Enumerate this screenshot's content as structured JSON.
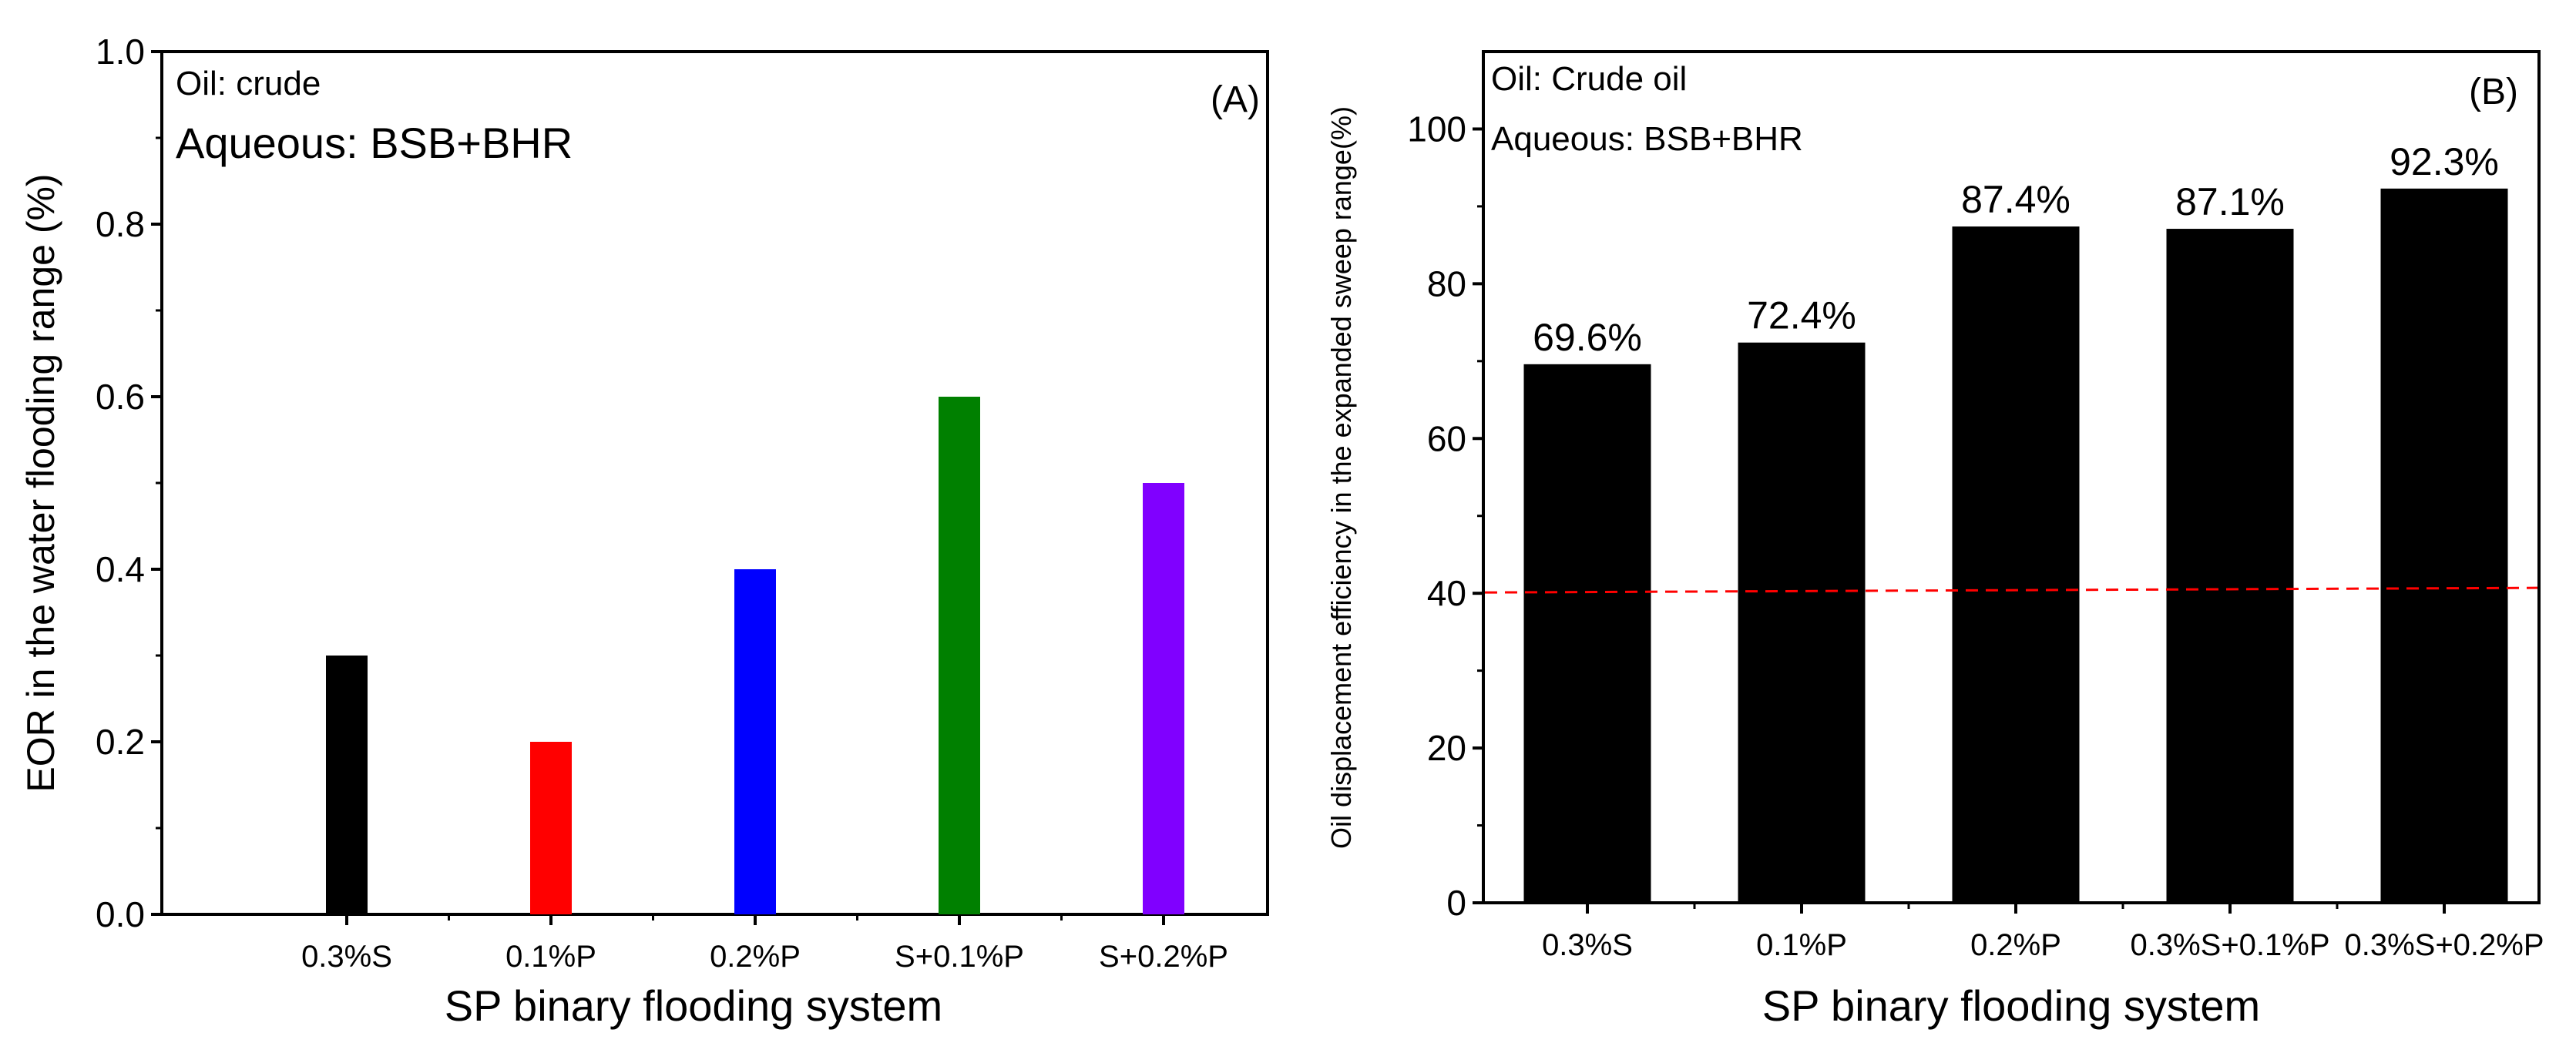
{
  "chart_data": [
    {
      "type": "bar",
      "panel_label": "(A)",
      "annotations": [
        "Oil: crude",
        "Aqueous: BSB+BHR"
      ],
      "categories": [
        "0.3%S",
        "0.1%P",
        "0.2%P",
        "S+0.1%P",
        "S+0.2%P"
      ],
      "values": [
        0.3,
        0.2,
        0.4,
        0.6,
        0.5
      ],
      "colors": [
        "#000000",
        "#ff0000",
        "#0000ff",
        "#008000",
        "#8000ff"
      ],
      "xlabel": "SP binary flooding system",
      "ylabel": "EOR in the water flooding range (%)",
      "ylim": [
        0,
        1.0
      ],
      "yticks": [
        "0.0",
        "0.2",
        "0.4",
        "0.6",
        "0.8",
        "1.0"
      ],
      "grid": false
    },
    {
      "type": "bar",
      "panel_label": "(B)",
      "annotations": [
        "Oil: Crude oil",
        "Aqueous: BSB+BHR"
      ],
      "categories": [
        "0.3%S",
        "0.1%P",
        "0.2%P",
        "0.3%S+0.1%P",
        "0.3%S+0.2%P"
      ],
      "values": [
        69.6,
        72.4,
        87.4,
        87.1,
        92.3
      ],
      "data_labels": [
        "69.6%",
        "72.4%",
        "87.4%",
        "87.1%",
        "92.3%"
      ],
      "color": "#000000",
      "reference_line": {
        "value": 40.4,
        "color": "#ff0000",
        "style": "dashed"
      },
      "xlabel": "SP binary flooding system",
      "ylabel": "Oil displacement efficiency in the expanded sweep range(%)",
      "ylim": [
        0,
        110
      ],
      "yticks": [
        "0",
        "20",
        "40",
        "60",
        "80",
        "100"
      ],
      "grid": false
    }
  ]
}
